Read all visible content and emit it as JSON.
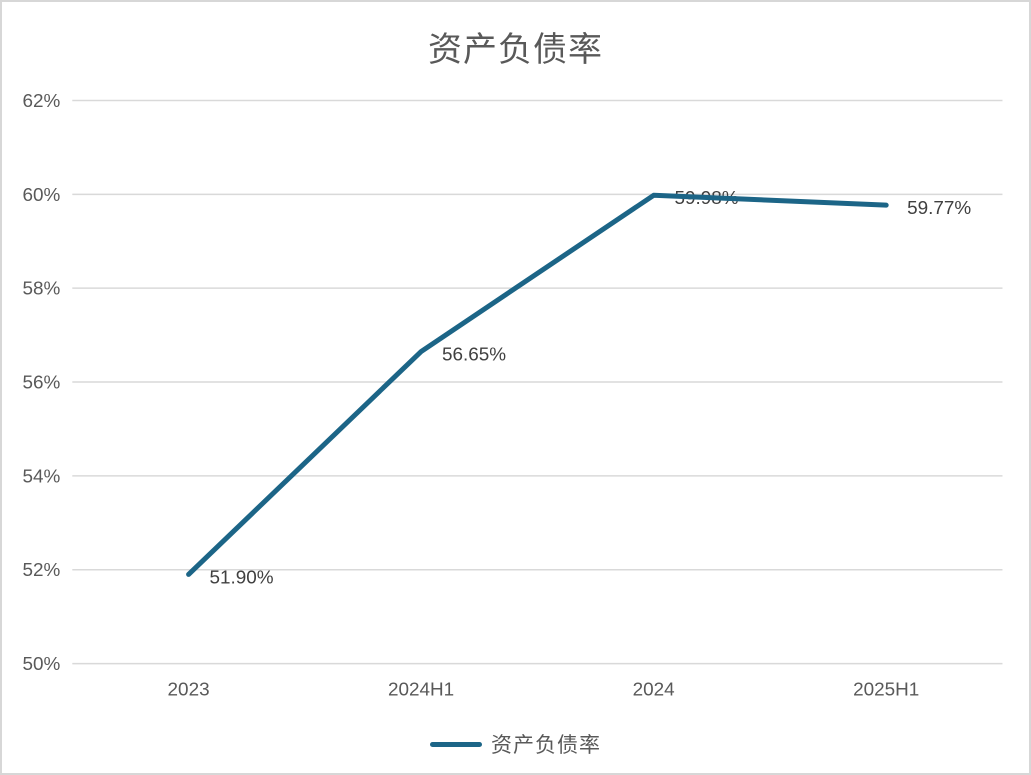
{
  "chart_data": {
    "type": "line",
    "title": "资产负债率",
    "categories": [
      "2023",
      "2024H1",
      "2024",
      "2025H1"
    ],
    "series": [
      {
        "name": "资产负债率",
        "values": [
          51.9,
          56.65,
          59.98,
          59.77
        ]
      }
    ],
    "data_labels": [
      "51.90%",
      "56.65%",
      "59.98%",
      "59.77%"
    ],
    "y_ticks": [
      "62%",
      "60%",
      "58%",
      "56%",
      "54%",
      "52%",
      "50%"
    ],
    "ylim": [
      50,
      62
    ],
    "xlabel": "",
    "ylabel": "",
    "grid": true,
    "legend": [
      "资产负债率"
    ],
    "legend_position": "bottom",
    "colors": {
      "line": "#1c6587",
      "gridline": "#d9d9d9",
      "tick_label": "#595959",
      "data_label": "#404040",
      "title": "#595959",
      "border": "#d7d7d7"
    }
  }
}
